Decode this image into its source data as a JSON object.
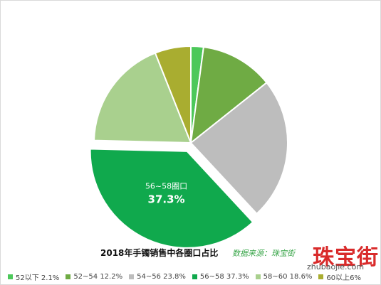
{
  "chart_data": {
    "type": "pie",
    "title": "2018年手镯销售中各圈口占比",
    "source": "数据来源：珠宝街",
    "categories": [
      "52以下",
      "52~54",
      "54~56",
      "56~58",
      "58~60",
      "60以上"
    ],
    "values": [
      2.1,
      12.2,
      23.8,
      37.3,
      18.6,
      6
    ],
    "colors": [
      "#4cc85a",
      "#6fab44",
      "#bdbdbd",
      "#10a94d",
      "#a9d08e",
      "#a9ad30"
    ],
    "legend_labels": [
      "52以下 2.1%",
      "52~54 12.2%",
      "54~56 23.8%",
      "56~58 37.3%",
      "58~60 18.6%",
      "60以上6%"
    ],
    "legend_position": "bottom",
    "exploded_slice": "56~58",
    "annotation": {
      "category": "56~58圈口",
      "value": "37.3%"
    }
  },
  "watermark": {
    "logo": "珠宝街",
    "url": "zhubaojie.com"
  }
}
